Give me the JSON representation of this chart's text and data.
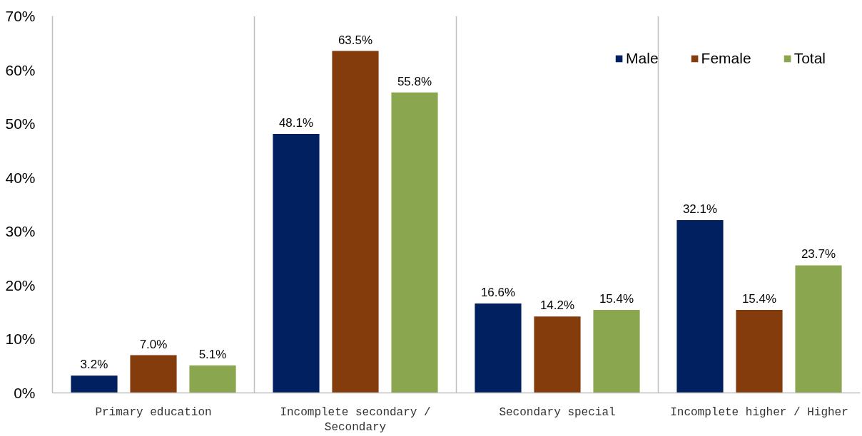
{
  "chart_data": {
    "type": "bar",
    "categories": [
      "Primary education",
      "Incomplete secondary / Secondary",
      "Secondary special",
      "Incomplete higher / Higher"
    ],
    "series": [
      {
        "name": "Male",
        "color": "#002060",
        "values": [
          3.2,
          48.1,
          16.6,
          32.1
        ],
        "value_labels": [
          "3.2%",
          "48.1%",
          "16.6%",
          "32.1%"
        ]
      },
      {
        "name": "Female",
        "color": "#843c0c",
        "values": [
          7.0,
          63.5,
          14.2,
          15.4
        ],
        "value_labels": [
          "7.0%",
          "63.5%",
          "14.2%",
          "15.4%"
        ]
      },
      {
        "name": "Total",
        "color": "#8aa64e",
        "values": [
          5.1,
          55.8,
          15.4,
          23.7
        ],
        "value_labels": [
          "5.1%",
          "55.8%",
          "15.4%",
          "23.7%"
        ]
      }
    ],
    "ylim": [
      0,
      70
    ],
    "yticks": [
      {
        "value": 0,
        "label": "0%"
      },
      {
        "value": 10,
        "label": "10%"
      },
      {
        "value": 20,
        "label": "20%"
      },
      {
        "value": 30,
        "label": "30%"
      },
      {
        "value": 40,
        "label": "40%"
      },
      {
        "value": 50,
        "label": "50%"
      },
      {
        "value": 60,
        "label": "60%"
      },
      {
        "value": 70,
        "label": "70%"
      }
    ],
    "grid": "x",
    "legend": "top right"
  }
}
